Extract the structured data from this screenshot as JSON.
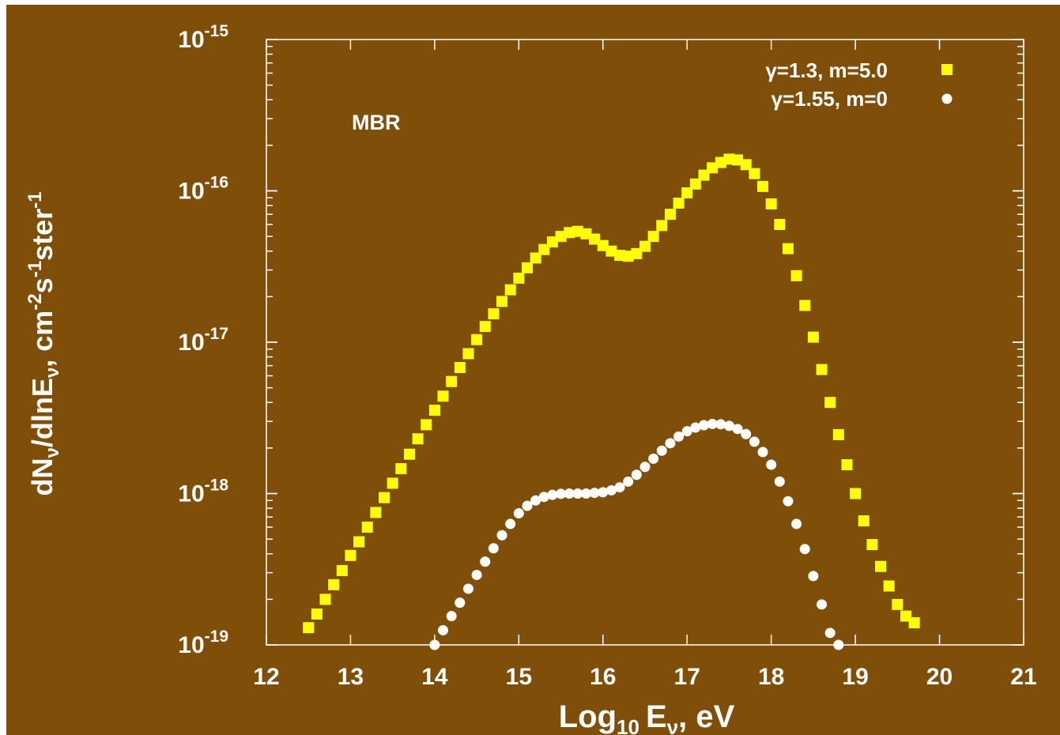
{
  "colors": {
    "background": "#7f4e08",
    "axis": "#ffffff",
    "series_yellow": "#ffff00",
    "series_white": "#ffffff"
  },
  "chart_data": {
    "type": "scatter",
    "title": "",
    "annotation": "MBR",
    "xlabel": {
      "base": "Log",
      "base_sub": "10",
      "var": "E",
      "var_sub": "ν",
      "suffix": ", eV"
    },
    "ylabel": {
      "a": "dN",
      "a_sub": "ν",
      "b": "/dlnE",
      "b_sub": "ν",
      "c": ", cm",
      "c_sup": "-2",
      "d": "s",
      "d_sup": "-1",
      "e": "ster",
      "e_sup": "-1"
    },
    "xlim": [
      12,
      21
    ],
    "ylim": [
      1e-19,
      1e-15
    ],
    "yscale": "log",
    "x_ticks": [
      12,
      13,
      14,
      15,
      16,
      17,
      18,
      19,
      20,
      21
    ],
    "x_tick_labels": [
      "12",
      "13",
      "14",
      "15",
      "16",
      "17",
      "18",
      "19",
      "20",
      "21"
    ],
    "y_ticks": [
      -19,
      -18,
      -17,
      -16,
      -15
    ],
    "y_tick_base": "10",
    "y_tick_exponents": [
      "-19",
      "-18",
      "-17",
      "-16",
      "-15"
    ],
    "grid": false,
    "legend_position": "top-right",
    "series": [
      {
        "name": "γ=1.3, m=5.0",
        "marker": "square",
        "color": "#ffff00",
        "points": [
          [
            12.5,
            1.3e-19
          ],
          [
            12.6,
            1.6e-19
          ],
          [
            12.7,
            2e-19
          ],
          [
            12.8,
            2.5e-19
          ],
          [
            12.9,
            3.1e-19
          ],
          [
            13.0,
            3.9e-19
          ],
          [
            13.1,
            4.8e-19
          ],
          [
            13.2,
            6e-19
          ],
          [
            13.3,
            7.5e-19
          ],
          [
            13.4,
            9.4e-19
          ],
          [
            13.5,
            1.17e-18
          ],
          [
            13.6,
            1.46e-18
          ],
          [
            13.7,
            1.82e-18
          ],
          [
            13.8,
            2.3e-18
          ],
          [
            13.9,
            2.85e-18
          ],
          [
            14.0,
            3.55e-18
          ],
          [
            14.1,
            4.4e-18
          ],
          [
            14.2,
            5.5e-18
          ],
          [
            14.3,
            6.8e-18
          ],
          [
            14.4,
            8.4e-18
          ],
          [
            14.5,
            1.04e-17
          ],
          [
            14.6,
            1.27e-17
          ],
          [
            14.7,
            1.54e-17
          ],
          [
            14.8,
            1.86e-17
          ],
          [
            14.9,
            2.22e-17
          ],
          [
            15.0,
            2.65e-17
          ],
          [
            15.1,
            3.1e-17
          ],
          [
            15.2,
            3.6e-17
          ],
          [
            15.3,
            4.1e-17
          ],
          [
            15.4,
            4.6e-17
          ],
          [
            15.5,
            5e-17
          ],
          [
            15.6,
            5.3e-17
          ],
          [
            15.7,
            5.4e-17
          ],
          [
            15.8,
            5.2e-17
          ],
          [
            15.9,
            4.8e-17
          ],
          [
            16.0,
            4.35e-17
          ],
          [
            16.1,
            4e-17
          ],
          [
            16.2,
            3.75e-17
          ],
          [
            16.3,
            3.7e-17
          ],
          [
            16.4,
            3.85e-17
          ],
          [
            16.5,
            4.3e-17
          ],
          [
            16.6,
            5e-17
          ],
          [
            16.7,
            5.9e-17
          ],
          [
            16.8,
            7e-17
          ],
          [
            16.9,
            8.3e-17
          ],
          [
            17.0,
            9.7e-17
          ],
          [
            17.1,
            1.11e-16
          ],
          [
            17.2,
            1.27e-16
          ],
          [
            17.3,
            1.42e-16
          ],
          [
            17.4,
            1.54e-16
          ],
          [
            17.5,
            1.62e-16
          ],
          [
            17.6,
            1.6e-16
          ],
          [
            17.7,
            1.49e-16
          ],
          [
            17.8,
            1.3e-16
          ],
          [
            17.9,
            1.07e-16
          ],
          [
            18.0,
            8.2e-17
          ],
          [
            18.1,
            6e-17
          ],
          [
            18.2,
            4.15e-17
          ],
          [
            18.3,
            2.75e-17
          ],
          [
            18.4,
            1.75e-17
          ],
          [
            18.5,
            1.08e-17
          ],
          [
            18.6,
            6.6e-18
          ],
          [
            18.7,
            4e-18
          ],
          [
            18.8,
            2.45e-18
          ],
          [
            18.9,
            1.55e-18
          ],
          [
            19.0,
            1e-18
          ],
          [
            19.1,
            6.6e-19
          ],
          [
            19.2,
            4.6e-19
          ],
          [
            19.3,
            3.3e-19
          ],
          [
            19.4,
            2.45e-19
          ],
          [
            19.5,
            1.85e-19
          ],
          [
            19.6,
            1.55e-19
          ],
          [
            19.7,
            1.4e-19
          ]
        ]
      },
      {
        "name": "γ=1.55, m=0",
        "marker": "circle",
        "color": "#ffffff",
        "points": [
          [
            14.0,
            1e-19
          ],
          [
            14.1,
            1.25e-19
          ],
          [
            14.2,
            1.55e-19
          ],
          [
            14.3,
            1.9e-19
          ],
          [
            14.4,
            2.35e-19
          ],
          [
            14.5,
            2.9e-19
          ],
          [
            14.6,
            3.55e-19
          ],
          [
            14.7,
            4.35e-19
          ],
          [
            14.8,
            5.3e-19
          ],
          [
            14.9,
            6.3e-19
          ],
          [
            15.0,
            7.4e-19
          ],
          [
            15.1,
            8.3e-19
          ],
          [
            15.2,
            9e-19
          ],
          [
            15.3,
            9.5e-19
          ],
          [
            15.4,
            9.8e-19
          ],
          [
            15.5,
            9.95e-19
          ],
          [
            15.6,
            1e-18
          ],
          [
            15.7,
            1e-18
          ],
          [
            15.8,
            1e-18
          ],
          [
            15.9,
            1.01e-18
          ],
          [
            16.0,
            1.02e-18
          ],
          [
            16.1,
            1.05e-18
          ],
          [
            16.2,
            1.1e-18
          ],
          [
            16.3,
            1.2e-18
          ],
          [
            16.4,
            1.33e-18
          ],
          [
            16.5,
            1.5e-18
          ],
          [
            16.6,
            1.7e-18
          ],
          [
            16.7,
            1.92e-18
          ],
          [
            16.8,
            2.15e-18
          ],
          [
            16.9,
            2.38e-18
          ],
          [
            17.0,
            2.58e-18
          ],
          [
            17.1,
            2.73e-18
          ],
          [
            17.2,
            2.83e-18
          ],
          [
            17.3,
            2.88e-18
          ],
          [
            17.4,
            2.87e-18
          ],
          [
            17.5,
            2.8e-18
          ],
          [
            17.6,
            2.67e-18
          ],
          [
            17.7,
            2.47e-18
          ],
          [
            17.8,
            2.2e-18
          ],
          [
            17.9,
            1.88e-18
          ],
          [
            18.0,
            1.55e-18
          ],
          [
            18.1,
            1.2e-18
          ],
          [
            18.2,
            8.9e-19
          ],
          [
            18.3,
            6.3e-19
          ],
          [
            18.4,
            4.3e-19
          ],
          [
            18.5,
            2.85e-19
          ],
          [
            18.6,
            1.85e-19
          ],
          [
            18.7,
            1.2e-19
          ],
          [
            18.8,
            1e-19
          ]
        ]
      }
    ]
  }
}
